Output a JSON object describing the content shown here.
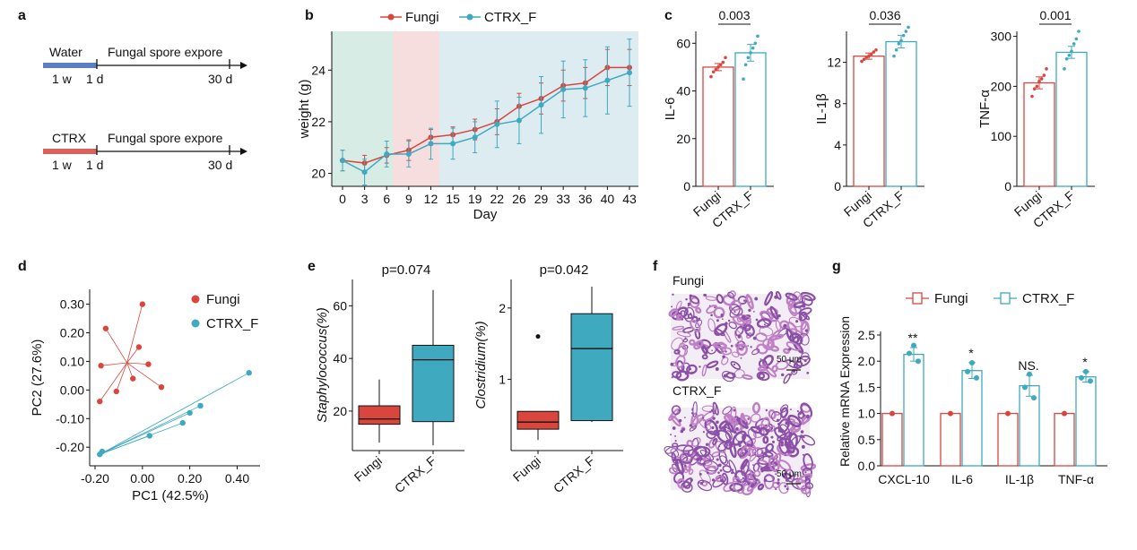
{
  "panel_labels": {
    "a": "a",
    "b": "b",
    "c": "c",
    "d": "d",
    "e": "e",
    "f": "f",
    "g": "g"
  },
  "colors": {
    "fungi": "#d9463e",
    "ctrx": "#3ea9bf",
    "bg_green": "#d8ece6",
    "bg_pink": "#f7dede",
    "bg_blue": "#dcecf1",
    "histo_bg": "#f3eef5",
    "histo_pink": "#c080c6",
    "histo_purple": "#8a4fa6"
  },
  "timeline": {
    "top": {
      "start_label": "Water",
      "event_label": "Fungal spore expore",
      "ticks": [
        "1 w",
        "1 d",
        "30 d"
      ]
    },
    "bottom": {
      "start_label": "CTRX",
      "event_label": "Fungal spore expore",
      "ticks": [
        "1 w",
        "1 d",
        "30 d"
      ]
    }
  },
  "legend_main": [
    "Fungi",
    "CTRX_F"
  ],
  "chart_data": [
    {
      "panel": "b",
      "type": "line",
      "xlabel": "Day",
      "ylabel": "weight (g)",
      "categories": [
        "0",
        "3",
        "6",
        "9",
        "12",
        "15",
        "19",
        "22",
        "26",
        "29",
        "33",
        "36",
        "40",
        "43"
      ],
      "ylim": [
        19.5,
        25.5
      ],
      "yticks": [
        20,
        22,
        24
      ],
      "series": [
        {
          "name": "Fungi",
          "values": [
            20.5,
            20.4,
            20.7,
            20.9,
            21.4,
            21.5,
            21.7,
            22.0,
            22.6,
            22.9,
            23.4,
            23.5,
            24.1,
            24.1
          ],
          "err": [
            0.4,
            0.3,
            0.3,
            0.4,
            0.3,
            0.3,
            0.4,
            0.5,
            0.5,
            0.6,
            0.6,
            0.6,
            0.7,
            0.7
          ]
        },
        {
          "name": "CTRX_F",
          "values": [
            20.5,
            20.05,
            20.75,
            20.75,
            21.15,
            21.15,
            21.4,
            21.9,
            22.05,
            22.65,
            23.25,
            23.3,
            23.6,
            23.9
          ],
          "err": [
            0.4,
            0.5,
            0.5,
            0.5,
            0.6,
            0.6,
            0.6,
            0.9,
            0.9,
            1.1,
            1.1,
            1.1,
            1.3,
            1.3
          ]
        }
      ]
    },
    {
      "panel": "c",
      "type": "bar",
      "ylabel": "IL-6",
      "categories": [
        "Fungi",
        "CTRX_F"
      ],
      "ylim": [
        0,
        65
      ],
      "yticks": [
        0,
        20,
        40,
        60
      ],
      "values": [
        50.0,
        56.0
      ],
      "err": [
        1.5,
        3.5
      ],
      "points": [
        [
          46,
          48,
          49,
          50,
          51,
          52,
          54
        ],
        [
          45,
          51,
          54,
          56,
          58,
          60,
          63
        ]
      ],
      "pvalue": "0.003"
    },
    {
      "panel": "c",
      "type": "bar",
      "ylabel": "IL-1β",
      "categories": [
        "Fungi",
        "CTRX_F"
      ],
      "ylim": [
        0,
        15
      ],
      "yticks": [
        0,
        4,
        8,
        12
      ],
      "values": [
        12.6,
        14.0
      ],
      "err": [
        0.3,
        0.6
      ],
      "points": [
        [
          12.1,
          12.3,
          12.5,
          12.6,
          12.8,
          13.0,
          13.2
        ],
        [
          12.6,
          13.2,
          13.8,
          14.1,
          14.6,
          15.0,
          15.4
        ]
      ],
      "pvalue": "0.036"
    },
    {
      "panel": "c",
      "type": "bar",
      "ylabel": "TNF-α",
      "categories": [
        "Fungi",
        "CTRX_F"
      ],
      "ylim": [
        0,
        310
      ],
      "yticks": [
        0,
        100,
        200,
        300
      ],
      "values": [
        207,
        268
      ],
      "err": [
        12,
        12
      ],
      "points": [
        [
          180,
          195,
          200,
          210,
          215,
          222,
          235
        ],
        [
          235,
          255,
          262,
          270,
          285,
          295,
          310
        ]
      ],
      "pvalue": "0.001"
    },
    {
      "panel": "d",
      "type": "scatter",
      "xlabel": "PC1 (42.5%)",
      "ylabel": "PC2 (27.6%)",
      "xlim": [
        -0.2,
        0.47
      ],
      "ylim": [
        -0.24,
        0.33
      ],
      "xticks": [
        -0.2,
        0.0,
        0.2,
        0.4
      ],
      "xtick_labels": [
        "-0.20",
        "0.00",
        "0.20",
        "0.40"
      ],
      "yticks": [
        -0.2,
        -0.1,
        0.0,
        0.1,
        0.2,
        0.3
      ],
      "ytick_labels": [
        "-0.20",
        "-0.10",
        "0.00",
        "0.10",
        "0.20",
        "0.30"
      ],
      "series": [
        {
          "name": "Fungi",
          "x": [
            -0.155,
            -0.175,
            -0.18,
            -0.11,
            -0.04,
            -0.015,
            0.0,
            0.025,
            0.08
          ],
          "y": [
            0.215,
            0.085,
            -0.04,
            -0.005,
            0.04,
            0.15,
            0.3,
            0.09,
            0.01
          ],
          "centroid": [
            -0.065,
            0.095
          ]
        },
        {
          "name": "CTRX_F",
          "x": [
            -0.17,
            -0.18,
            0.03,
            0.17,
            0.2,
            0.245,
            0.45
          ],
          "y": [
            -0.215,
            -0.225,
            -0.16,
            -0.115,
            -0.08,
            -0.055,
            0.06
          ],
          "centroid": [
            -0.18,
            -0.225
          ]
        }
      ],
      "legend": [
        "Fungi",
        "CTRX_F"
      ]
    },
    {
      "panel": "e",
      "type": "box",
      "ylabel": "Staphylococcus(%)",
      "categories": [
        "Fungi",
        "CTRX_F"
      ],
      "ylim": [
        5,
        70
      ],
      "yticks": [
        20,
        40,
        60
      ],
      "pvalue": "p=0.074",
      "boxes": [
        {
          "min": 8,
          "q1": 15,
          "median": 17,
          "q3": 22,
          "max": 32
        },
        {
          "min": 7,
          "q1": 16,
          "median": 39.5,
          "q3": 45,
          "max": 66
        }
      ]
    },
    {
      "panel": "e",
      "type": "box",
      "ylabel": "Clostridium(%)",
      "categories": [
        "Fungi",
        "CTRX_F"
      ],
      "ylim": [
        0,
        2.4
      ],
      "yticks": [
        1,
        2
      ],
      "pvalue": "p=0.042",
      "boxes": [
        {
          "min": 0.15,
          "q1": 0.3,
          "median": 0.4,
          "q3": 0.55,
          "max": 0.55,
          "outliers": [
            1.6
          ]
        },
        {
          "min": 0.4,
          "q1": 0.42,
          "median": 1.43,
          "q3": 1.92,
          "max": 2.3
        }
      ]
    },
    {
      "panel": "g",
      "type": "bar",
      "ylabel": "Relative mRNA Expression",
      "categories": [
        "CXCL-10",
        "IL-6",
        "IL-1β",
        "TNF-α"
      ],
      "ylim": [
        0,
        2.6
      ],
      "yticks": [
        0.0,
        0.5,
        1.0,
        1.5,
        2.0,
        2.5
      ],
      "ytick_labels": [
        "0.0",
        "0.5",
        "1.0",
        "1.5",
        "2.0",
        "2.5"
      ],
      "series": [
        {
          "name": "Fungi",
          "values": [
            1,
            1,
            1,
            1
          ],
          "err": [
            0,
            0,
            0,
            0
          ]
        },
        {
          "name": "CTRX_F",
          "values": [
            2.13,
            1.82,
            1.53,
            1.7
          ],
          "err": [
            0.13,
            0.15,
            0.2,
            0.1
          ],
          "points": [
            [
              2.0,
              2.15,
              2.3
            ],
            [
              1.68,
              1.8,
              1.97
            ],
            [
              1.3,
              1.5,
              1.75
            ],
            [
              1.62,
              1.68,
              1.8
            ]
          ]
        }
      ],
      "significance": [
        "**",
        "*",
        "NS.",
        "*"
      ]
    }
  ],
  "histology": {
    "top_label": "Fungi",
    "bottom_label": "CTRX_F",
    "scale_label": "50 μm"
  }
}
